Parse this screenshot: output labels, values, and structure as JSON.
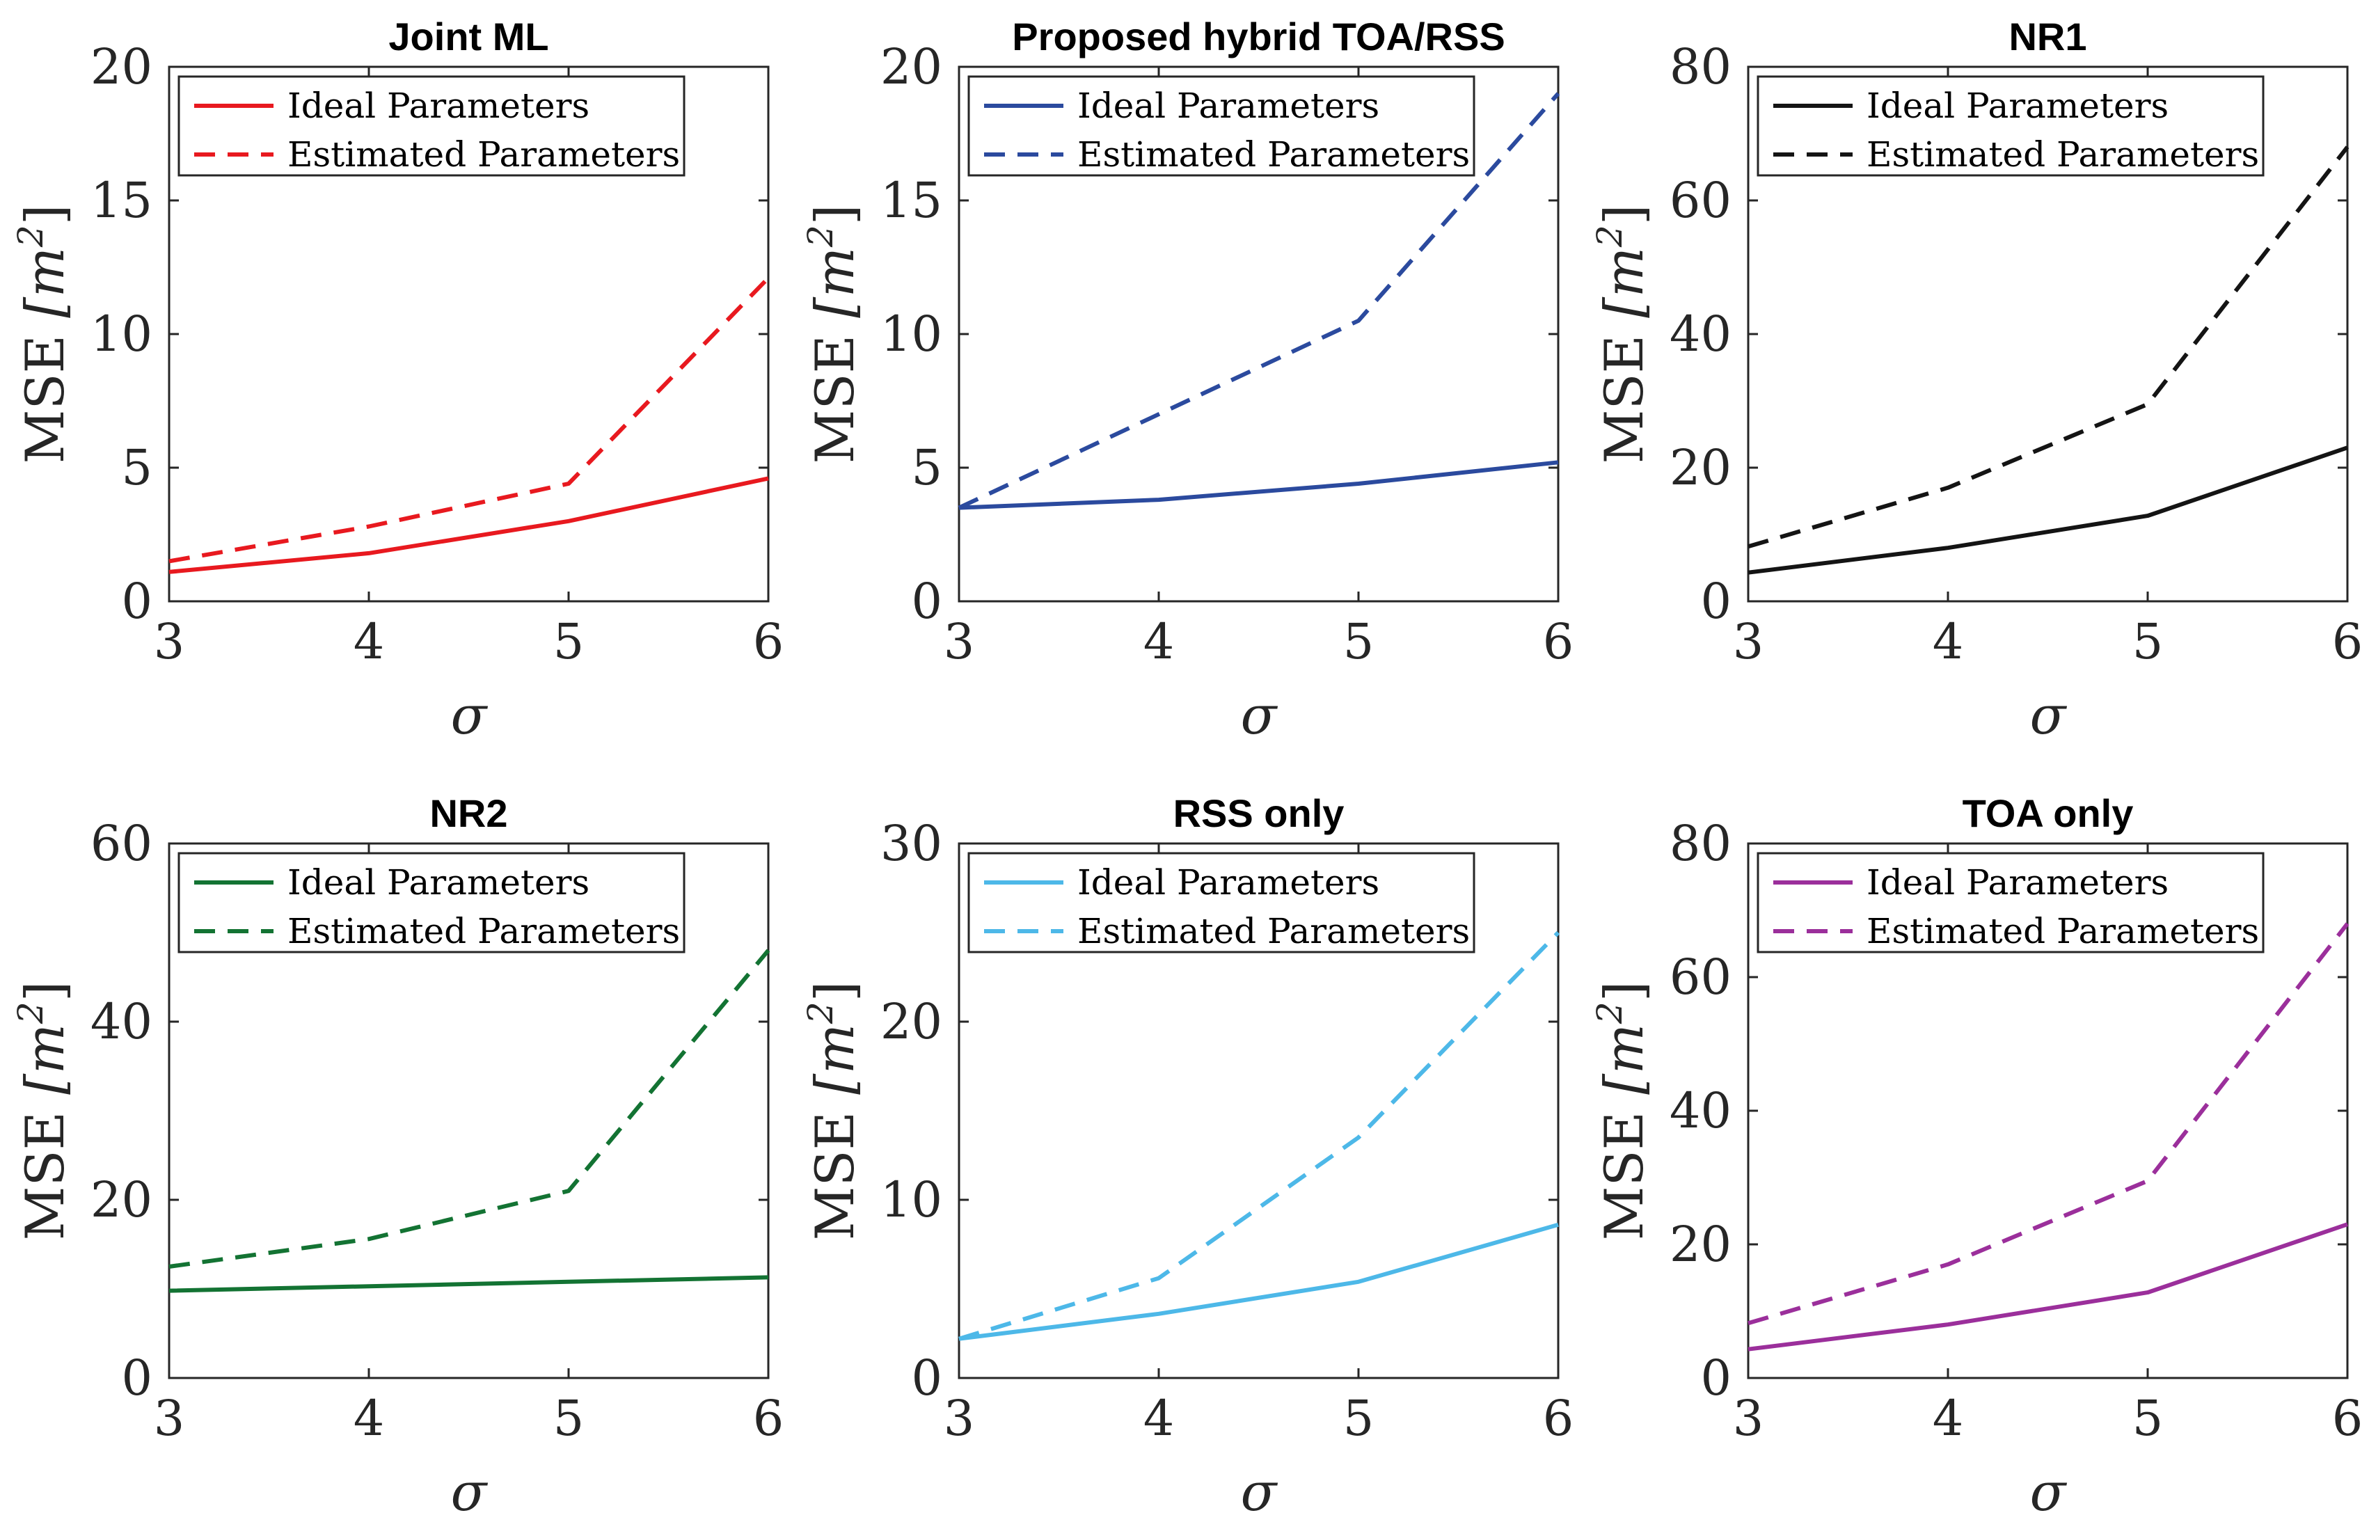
{
  "figure": {
    "x_axis_symbol": "σ",
    "y_axis_main": "MSE ",
    "y_axis_unit": "[m",
    "y_axis_exponent": "2",
    "y_axis_close": "]"
  },
  "chart_data": [
    {
      "type": "line",
      "title": "Joint ML",
      "xlabel": "σ",
      "ylabel": "MSE [m^2]",
      "x": [
        3,
        4,
        5,
        6
      ],
      "xlim": [
        3,
        6
      ],
      "ylim": [
        0,
        20
      ],
      "xticks": [
        "3",
        "4",
        "5",
        "6"
      ],
      "yticks": [
        "0",
        "5",
        "10",
        "15",
        "20"
      ],
      "color": "#e8191f",
      "legend": "top-left",
      "series": [
        {
          "name": "Ideal Parameters",
          "style": "solid",
          "values": [
            1.1,
            1.8,
            3.0,
            4.6
          ]
        },
        {
          "name": "Estimated Parameters",
          "style": "dashed",
          "values": [
            1.5,
            2.8,
            4.4,
            12.1
          ]
        }
      ]
    },
    {
      "type": "line",
      "title": "Proposed hybrid TOA/RSS",
      "xlabel": "σ",
      "ylabel": "MSE [m^2]",
      "x": [
        3,
        4,
        5,
        6
      ],
      "xlim": [
        3,
        6
      ],
      "ylim": [
        0,
        20
      ],
      "xticks": [
        "3",
        "4",
        "5",
        "6"
      ],
      "yticks": [
        "0",
        "5",
        "10",
        "15",
        "20"
      ],
      "color": "#2b4a9e",
      "legend": "top-left",
      "series": [
        {
          "name": "Ideal Parameters",
          "style": "solid",
          "values": [
            3.5,
            3.8,
            4.4,
            5.2
          ]
        },
        {
          "name": "Estimated Parameters",
          "style": "dashed",
          "values": [
            3.5,
            7.0,
            10.5,
            19.0
          ]
        }
      ]
    },
    {
      "type": "line",
      "title": "NR1",
      "xlabel": "σ",
      "ylabel": "MSE [m^2]",
      "x": [
        3,
        4,
        5,
        6
      ],
      "xlim": [
        3,
        6
      ],
      "ylim": [
        0,
        80
      ],
      "xticks": [
        "3",
        "4",
        "5",
        "6"
      ],
      "yticks": [
        "0",
        "20",
        "40",
        "60",
        "80"
      ],
      "color": "#141414",
      "legend": "top-left",
      "series": [
        {
          "name": "Ideal Parameters",
          "style": "solid",
          "values": [
            4.3,
            8.0,
            12.8,
            23.0
          ]
        },
        {
          "name": "Estimated Parameters",
          "style": "dashed",
          "values": [
            8.2,
            17.0,
            29.5,
            68.0
          ]
        }
      ]
    },
    {
      "type": "line",
      "title": "NR2",
      "xlabel": "σ",
      "ylabel": "MSE [m^2]",
      "x": [
        3,
        4,
        5,
        6
      ],
      "xlim": [
        3,
        6
      ],
      "ylim": [
        0,
        60
      ],
      "xticks": [
        "3",
        "4",
        "5",
        "6"
      ],
      "yticks": [
        "0",
        "20",
        "40",
        "60"
      ],
      "color": "#137333",
      "legend": "top-left",
      "series": [
        {
          "name": "Ideal Parameters",
          "style": "solid",
          "values": [
            9.8,
            10.3,
            10.8,
            11.3
          ]
        },
        {
          "name": "Estimated Parameters",
          "style": "dashed",
          "values": [
            12.5,
            15.6,
            21.0,
            48.0
          ]
        }
      ]
    },
    {
      "type": "line",
      "title": "RSS only",
      "xlabel": "σ",
      "ylabel": "MSE [m^2]",
      "x": [
        3,
        4,
        5,
        6
      ],
      "xlim": [
        3,
        6
      ],
      "ylim": [
        0,
        30
      ],
      "xticks": [
        "3",
        "4",
        "5",
        "6"
      ],
      "yticks": [
        "0",
        "10",
        "20",
        "30"
      ],
      "color": "#4db8e8",
      "legend": "top-left",
      "series": [
        {
          "name": "Ideal Parameters",
          "style": "solid",
          "values": [
            2.2,
            3.6,
            5.4,
            8.6
          ]
        },
        {
          "name": "Estimated Parameters",
          "style": "dashed",
          "values": [
            2.2,
            5.6,
            13.5,
            25.0
          ]
        }
      ]
    },
    {
      "type": "line",
      "title": "TOA only",
      "xlabel": "σ",
      "ylabel": "MSE [m^2]",
      "x": [
        3,
        4,
        5,
        6
      ],
      "xlim": [
        3,
        6
      ],
      "ylim": [
        0,
        80
      ],
      "xticks": [
        "3",
        "4",
        "5",
        "6"
      ],
      "yticks": [
        "0",
        "20",
        "40",
        "60",
        "80"
      ],
      "color": "#9b2f9b",
      "legend": "top-left",
      "series": [
        {
          "name": "Ideal Parameters",
          "style": "solid",
          "values": [
            4.3,
            8.0,
            12.8,
            23.0
          ]
        },
        {
          "name": "Estimated Parameters",
          "style": "dashed",
          "values": [
            8.2,
            17.0,
            29.5,
            68.0
          ]
        }
      ]
    }
  ]
}
